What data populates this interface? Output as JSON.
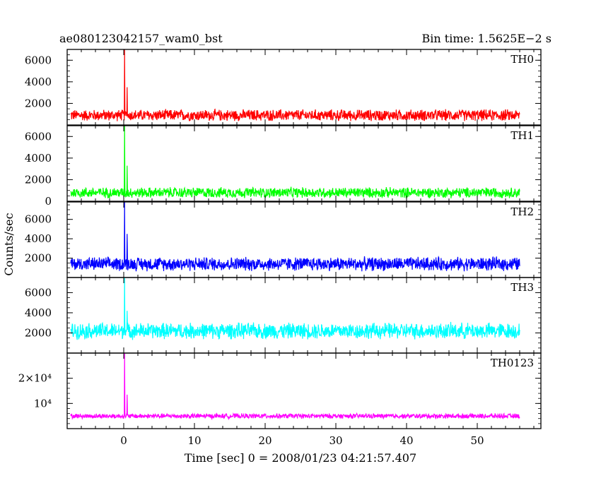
{
  "chart_data": {
    "type": "line",
    "title": "ae080123042157_wam0_bst",
    "subtitle": "Bin time: 1.5625E−2 s",
    "xlabel": "Time [sec] 0 = 2008/01/23 04:21:57.407",
    "ylabel": "Counts/sec",
    "xlim": [
      -8,
      59
    ],
    "x_ticks": [
      "0",
      "10",
      "20",
      "30",
      "40",
      "50"
    ],
    "x_data_range": [
      -7.5,
      56
    ],
    "panels": [
      {
        "name": "TH0",
        "color": "#ff0000",
        "ylim": [
          0,
          7000
        ],
        "y_ticks": [
          "2000",
          "4000",
          "6000"
        ],
        "baseline": 900,
        "noise": 600,
        "peaks": [
          {
            "x": 0.1,
            "y": 7000
          },
          {
            "x": 0.5,
            "y": 3500
          }
        ]
      },
      {
        "name": "TH1",
        "color": "#00ff00",
        "ylim": [
          0,
          7000
        ],
        "y_ticks": [
          "0",
          "2000",
          "4000",
          "6000"
        ],
        "baseline": 800,
        "noise": 550,
        "peaks": [
          {
            "x": 0.1,
            "y": 7000
          },
          {
            "x": 0.5,
            "y": 3300
          }
        ]
      },
      {
        "name": "TH2",
        "color": "#0000ff",
        "ylim": [
          0,
          7800
        ],
        "y_ticks": [
          "2000",
          "4000",
          "6000"
        ],
        "baseline": 1400,
        "noise": 800,
        "peaks": [
          {
            "x": 0.1,
            "y": 7800
          },
          {
            "x": 0.5,
            "y": 4500
          }
        ]
      },
      {
        "name": "TH3",
        "color": "#00ffff",
        "ylim": [
          0,
          7500
        ],
        "y_ticks": [
          "2000",
          "4000",
          "6000"
        ],
        "baseline": 2200,
        "noise": 900,
        "peaks": [
          {
            "x": 0.1,
            "y": 7500
          },
          {
            "x": 0.5,
            "y": 4200
          }
        ]
      },
      {
        "name": "TH0123",
        "color": "#ff00ff",
        "ylim": [
          0,
          30000
        ],
        "y_ticks": [
          "10⁴",
          "2×10⁴"
        ],
        "y_tick_values": [
          10000,
          20000
        ],
        "baseline": 5000,
        "noise": 1100,
        "peaks": [
          {
            "x": 0.1,
            "y": 30000
          },
          {
            "x": 0.5,
            "y": 13500
          }
        ]
      }
    ],
    "grid": false,
    "legend": "none"
  }
}
